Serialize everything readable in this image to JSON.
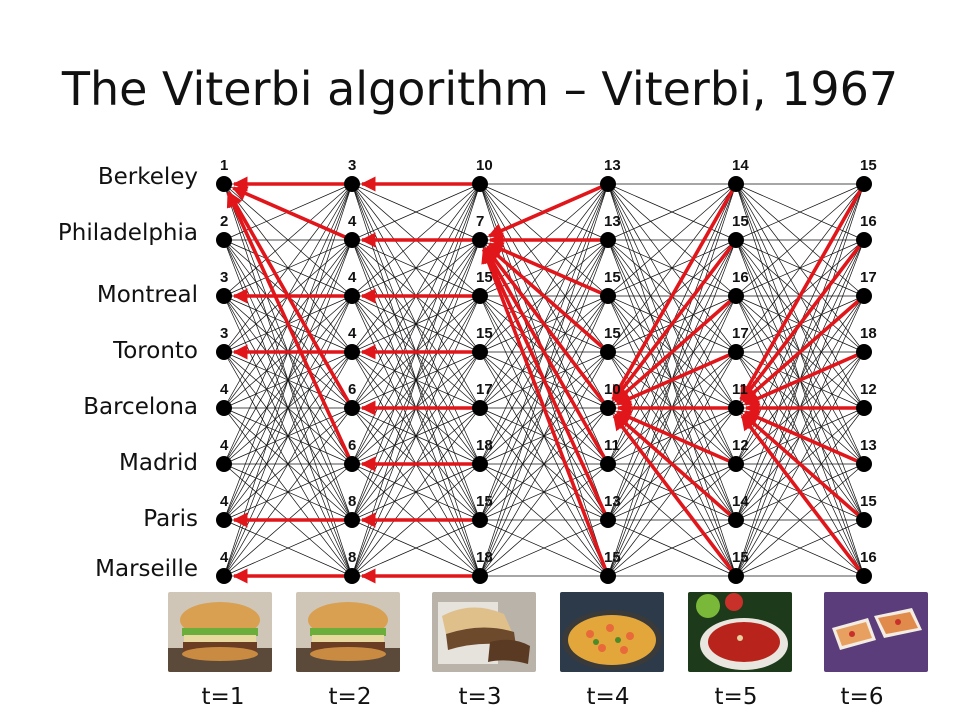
{
  "title": "The Viterbi algorithm – Viterbi, 1967",
  "states": [
    "Berkeley",
    "Philadelphia",
    "Montreal",
    "Toronto",
    "Barcelona",
    "Madrid",
    "Paris",
    "Marseille"
  ],
  "time_labels": [
    "t=1",
    "t=2",
    "t=3",
    "t=4",
    "t=5",
    "t=6"
  ],
  "scores": [
    [
      1,
      2,
      3,
      3,
      4,
      4,
      4,
      4
    ],
    [
      3,
      4,
      4,
      4,
      6,
      6,
      8,
      8
    ],
    [
      10,
      7,
      15,
      15,
      17,
      18,
      15,
      18
    ],
    [
      13,
      13,
      15,
      15,
      10,
      11,
      13,
      15
    ],
    [
      14,
      15,
      16,
      17,
      11,
      12,
      14,
      15
    ],
    [
      15,
      16,
      17,
      18,
      12,
      13,
      15,
      16
    ]
  ],
  "backpointers": [
    null,
    [
      0,
      0,
      2,
      3,
      0,
      0,
      6,
      7
    ],
    [
      0,
      1,
      2,
      3,
      4,
      5,
      6,
      7
    ],
    [
      1,
      1,
      1,
      1,
      1,
      1,
      1,
      1
    ],
    [
      4,
      4,
      4,
      4,
      4,
      4,
      4,
      4
    ],
    [
      4,
      4,
      4,
      4,
      4,
      4,
      4,
      4
    ]
  ],
  "food_images": [
    "burger",
    "burger",
    "cheesesteak",
    "paella",
    "gazpacho",
    "pizza-bites"
  ],
  "colors": {
    "edge": "#111111",
    "path": "#e0161b",
    "node": "#000000",
    "text": "#111111"
  }
}
